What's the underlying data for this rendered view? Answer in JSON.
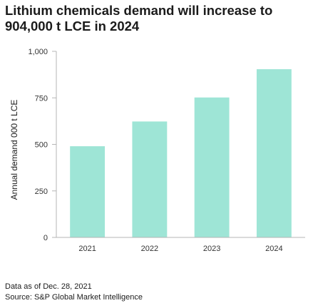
{
  "chart_data": {
    "type": "bar",
    "title": "Lithium chemicals demand will increase to 904,000 t LCE in 2024",
    "xlabel": "",
    "ylabel": "Annual demand 000 t LCE",
    "categories": [
      "2021",
      "2022",
      "2023",
      "2024"
    ],
    "values": [
      490,
      623,
      752,
      904
    ],
    "ylim": [
      0,
      1000
    ],
    "yticks": [
      0,
      250,
      500,
      750,
      1000
    ],
    "ytick_labels": [
      "0",
      "250",
      "500",
      "750",
      "1,000"
    ],
    "grid": false,
    "legend": "none",
    "bar_color": "#9ee5d6",
    "axis_color": "#b5b5b5"
  },
  "footnotes": {
    "data_as_of": "Data as of Dec. 28, 2021",
    "source": "Source: S&P Global Market Intelligence"
  }
}
